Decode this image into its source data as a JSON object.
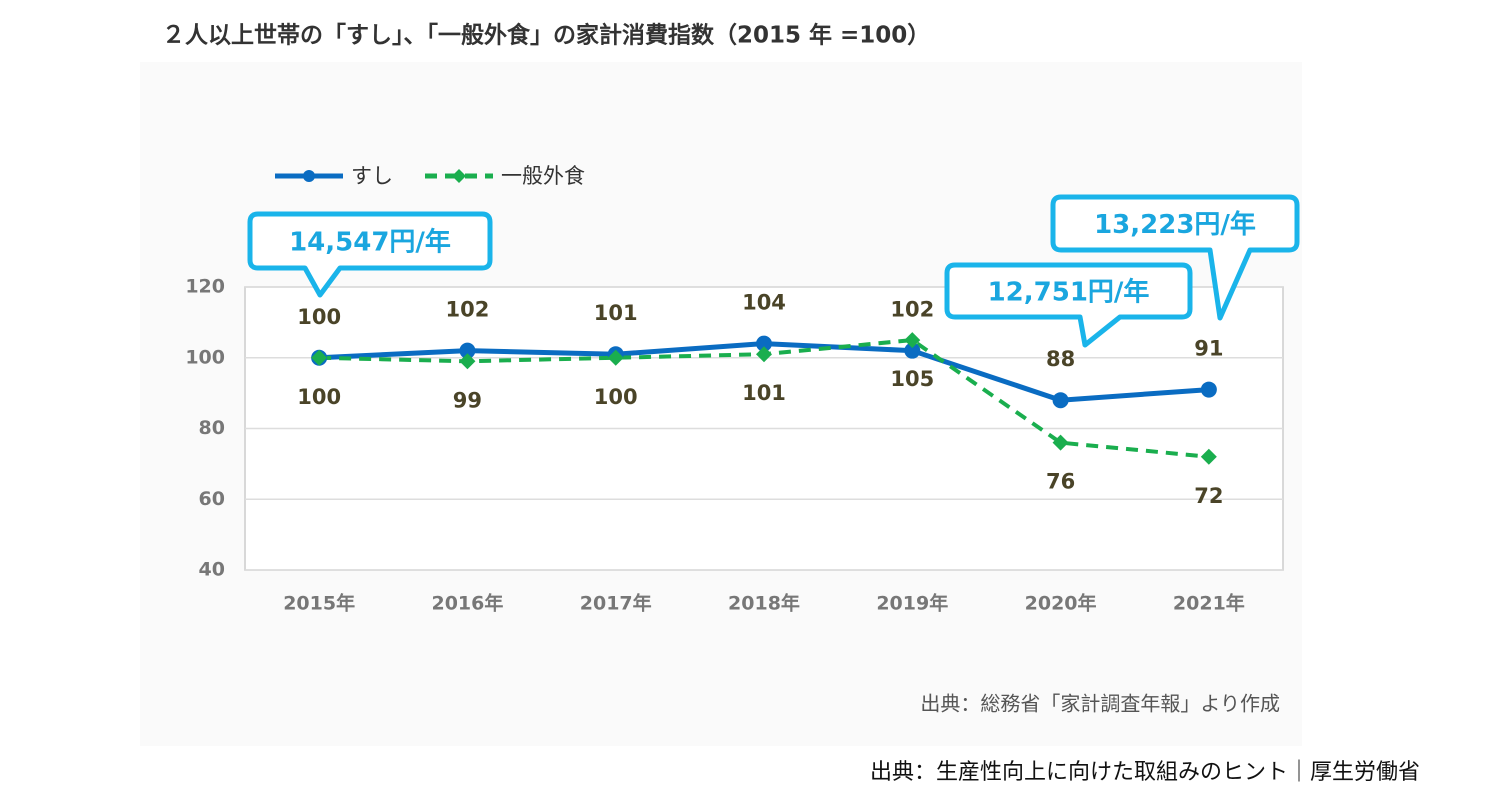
{
  "chart_data": {
    "type": "line",
    "title": "２人以上世帯の「すし」、「一般外食」の家計消費指数（2015 年 =100）",
    "categories": [
      "2015年",
      "2016年",
      "2017年",
      "2018年",
      "2019年",
      "2020年",
      "2021年"
    ],
    "series": [
      {
        "name": "すし",
        "color": "#0a6cc2",
        "values": [
          100,
          102,
          101,
          104,
          102,
          88,
          91
        ]
      },
      {
        "name": "一般外食",
        "color": "#1aae4e",
        "values": [
          100,
          99,
          100,
          101,
          105,
          76,
          72
        ]
      }
    ],
    "ylim": [
      40,
      120
    ],
    "yticks": [
      40,
      60,
      80,
      100,
      120
    ],
    "grid": true,
    "annotations": [
      "14,547円/年",
      "12,751円/年",
      "13,223円/年"
    ],
    "source": "出典：総務省「家計調査年報」より作成"
  },
  "footer": "出典：生産性向上に向けた取組みのヒント｜厚生労働省"
}
